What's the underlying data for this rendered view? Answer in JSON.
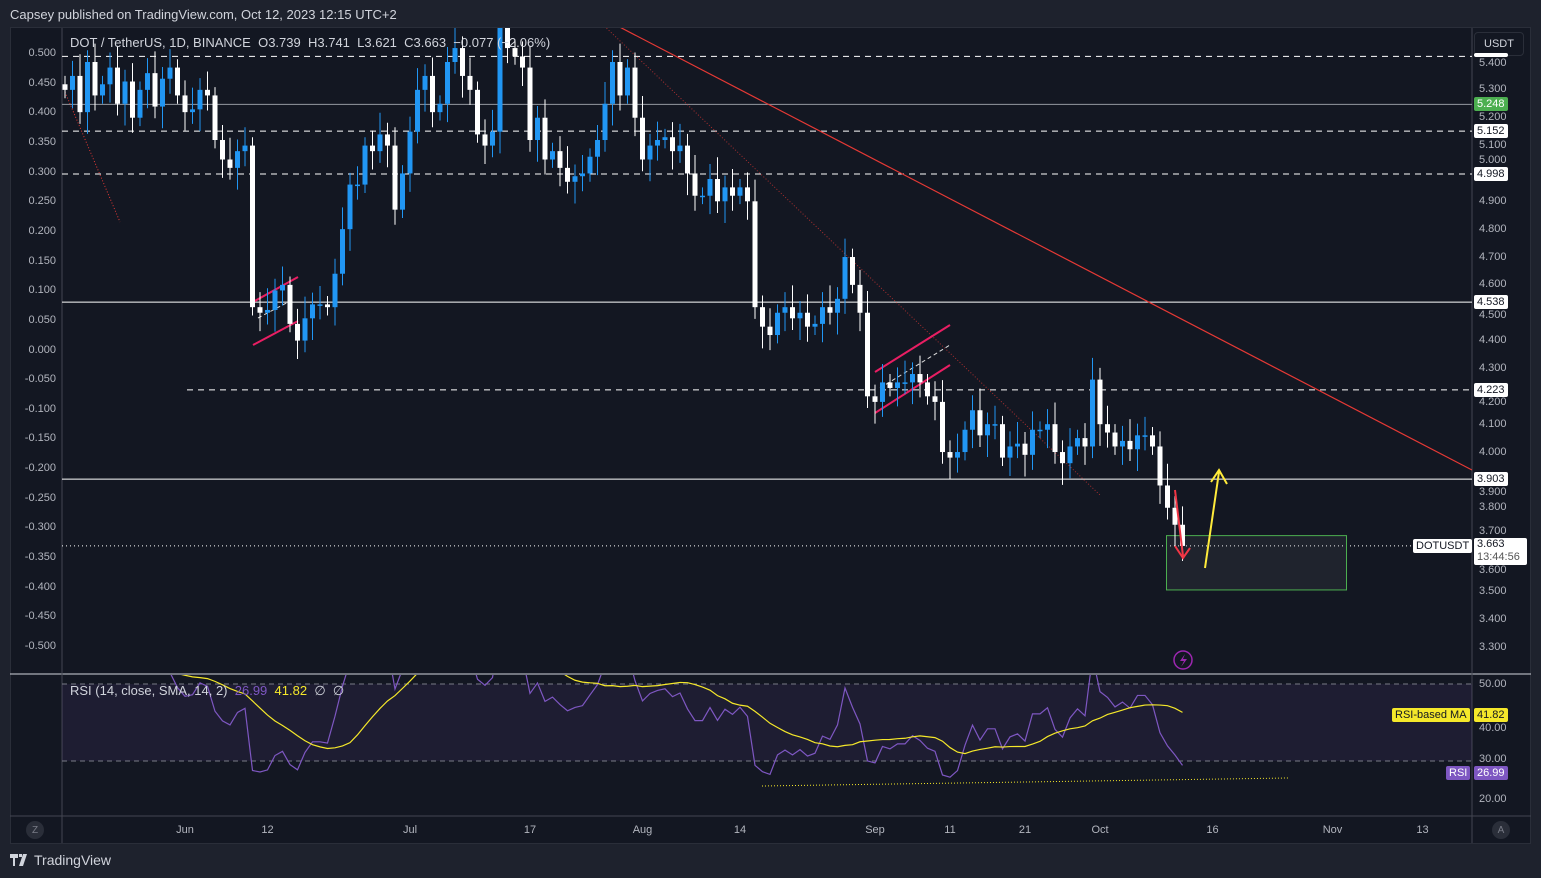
{
  "header": {
    "published": "Capsey published on TradingView.com, Oct 12, 2023 12:15 UTC+2"
  },
  "legend": {
    "symbol": "DOT / TetherUS, 1D, BINANCE",
    "open": "O3.739",
    "high": "H3.741",
    "low": "L3.621",
    "close": "C3.663",
    "change": "−0.077 (−2.06%)"
  },
  "currency_button": "USDT",
  "colors": {
    "background": "#131722",
    "up": "#2196f3",
    "down": "#ffffff",
    "rsi": "#7e57c2",
    "rsi_ma": "#f5e82a",
    "trendline": "#e53935",
    "channel": "#e91e63",
    "target_box": "#4caf50",
    "arrow_down": "#f23645",
    "arrow_up": "#ffeb3b"
  },
  "chart_data": {
    "type": "candlestick",
    "start_date": "2023-05-16",
    "end_date": "2023-10-12",
    "closes": [
      5.3,
      5.35,
      5.22,
      5.4,
      5.28,
      5.32,
      5.38,
      5.25,
      5.33,
      5.2,
      5.3,
      5.36,
      5.24,
      5.34,
      5.38,
      5.28,
      5.22,
      5.23,
      5.3,
      5.28,
      5.12,
      5.05,
      5.02,
      5.08,
      5.1,
      4.52,
      4.5,
      4.51,
      4.58,
      4.6,
      4.46,
      4.4,
      4.48,
      4.53,
      4.53,
      4.52,
      4.64,
      4.8,
      4.96,
      4.96,
      5.1,
      5.08,
      5.14,
      5.1,
      4.87,
      5.0,
      5.15,
      5.3,
      5.35,
      5.22,
      5.25,
      5.4,
      5.45,
      5.35,
      5.3,
      5.14,
      5.1,
      5.15,
      5.55,
      5.45,
      5.42,
      5.38,
      5.12,
      5.2,
      5.05,
      5.08,
      5.02,
      4.97,
      4.99,
      5.0,
      5.06,
      5.12,
      5.25,
      5.4,
      5.28,
      5.38,
      5.2,
      5.05,
      5.1,
      5.12,
      5.13,
      5.08,
      5.1,
      5.0,
      4.92,
      4.92,
      4.98,
      4.9,
      4.95,
      4.92,
      4.95,
      4.9,
      4.52,
      4.45,
      4.42,
      4.5,
      4.52,
      4.48,
      4.5,
      4.45,
      4.46,
      4.52,
      4.5,
      4.55,
      4.7,
      4.6,
      4.5,
      4.2,
      4.18,
      4.25,
      4.23,
      4.25,
      4.25,
      4.28,
      4.25,
      4.2,
      4.18,
      4.0,
      3.98,
      4.0,
      4.08,
      4.15,
      4.06,
      4.1,
      4.1,
      3.98,
      4.02,
      4.03,
      3.99,
      4.08,
      4.08,
      4.1,
      4.0,
      3.96,
      4.02,
      4.05,
      4.02,
      4.26,
      4.1,
      4.07,
      4.02,
      4.04,
      4.01,
      4.06,
      4.06,
      4.02,
      3.88,
      3.8,
      3.739,
      3.663
    ],
    "price_axis": {
      "ticks": [
        "5.400",
        "5.300",
        "5.200",
        "5.100",
        "5.000",
        "4.900",
        "4.800",
        "4.700",
        "4.600",
        "4.500",
        "4.400",
        "4.300",
        "4.200",
        "4.100",
        "4.000",
        "3.900",
        "3.800",
        "3.700",
        "3.600",
        "3.500",
        "3.400",
        "3.300"
      ],
      "range": [
        3.25,
        5.52
      ]
    },
    "left_axis": {
      "ticks": [
        "0.500",
        "0.450",
        "0.400",
        "0.350",
        "0.300",
        "0.250",
        "0.200",
        "0.150",
        "0.100",
        "0.050",
        "0.000",
        "-0.050",
        "-0.100",
        "-0.150",
        "-0.200",
        "-0.250",
        "-0.300",
        "-0.350",
        "-0.400",
        "-0.450",
        "-0.500"
      ]
    },
    "levels": [
      {
        "price": 5.42,
        "style": "dashed"
      },
      {
        "price": 5.248,
        "style": "solid",
        "label": "5.248",
        "badge": "green"
      },
      {
        "price": 5.152,
        "style": "dashed",
        "label": "5.152"
      },
      {
        "price": 4.998,
        "style": "dashed",
        "label": "4.998"
      },
      {
        "price": 4.538,
        "style": "solid",
        "label": "4.538"
      },
      {
        "price": 4.223,
        "style": "dashed",
        "label": "4.223"
      },
      {
        "price": 3.903,
        "style": "solid",
        "label": "3.903"
      },
      {
        "price": 3.663,
        "style": "dotted"
      }
    ],
    "last_price": {
      "symbol": "DOTUSDT",
      "price": "3.663",
      "countdown": "13:44:56"
    },
    "target_box": {
      "from_date": "2023-10-10",
      "to_date": "2023-11-03",
      "price_top": 3.7,
      "price_bottom": 3.505
    },
    "time_axis": [
      {
        "label": "Jun",
        "date": "2023-06-01"
      },
      {
        "label": "12",
        "date": "2023-06-12"
      },
      {
        "label": "Jul",
        "date": "2023-07-01"
      },
      {
        "label": "17",
        "date": "2023-07-17"
      },
      {
        "label": "Aug",
        "date": "2023-08-01"
      },
      {
        "label": "14",
        "date": "2023-08-14"
      },
      {
        "label": "Sep",
        "date": "2023-09-01"
      },
      {
        "label": "11",
        "date": "2023-09-11"
      },
      {
        "label": "21",
        "date": "2023-09-21"
      },
      {
        "label": "Oct",
        "date": "2023-10-01"
      },
      {
        "label": "16",
        "date": "2023-10-16"
      },
      {
        "label": "Nov",
        "date": "2023-11-01"
      },
      {
        "label": "13",
        "date": "2023-11-13"
      }
    ],
    "rsi": {
      "title": "RSI (14, close, SMA, 14, 2)",
      "value": "26.99",
      "ma_value": "41.82",
      "na1": "∅",
      "na2": "∅",
      "ticks": [
        "50.00",
        "40.00",
        "30.00",
        "20.00"
      ],
      "ma_label": "RSI-based MA",
      "rsi_label": "RSI",
      "range": [
        17,
        52.3
      ],
      "bands": [
        50,
        30
      ]
    }
  },
  "bottom": {
    "z_button": "Z",
    "a_button": "A",
    "logo_text": "TradingView"
  }
}
